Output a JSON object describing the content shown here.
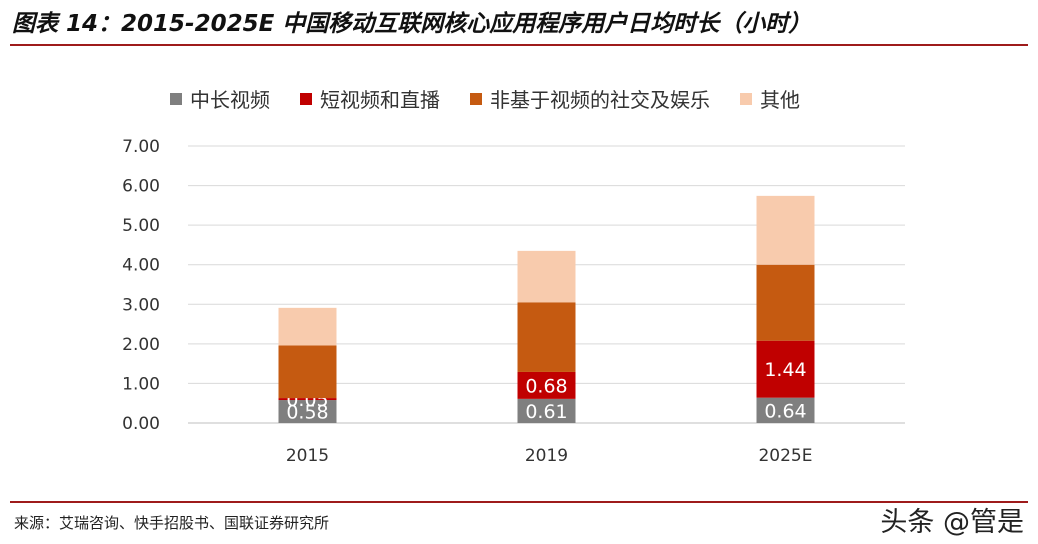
{
  "title": "图表 14：2015-2025E 中国移动互联网核心应用程序用户日均时长（小时）",
  "source": "来源：艾瑞咨询、快手招股书、国联证券研究所",
  "watermark": "头条 @管是",
  "colors": {
    "medium_long_video": "#7f7f7f",
    "short_video_live": "#c00000",
    "social_entertainment": "#c55a11",
    "other": "#f8cbad",
    "rule": "#9e1b1b"
  },
  "chart_data": {
    "type": "bar",
    "stacked": true,
    "categories": [
      "2015",
      "2019",
      "2025E"
    ],
    "series": [
      {
        "name": "中长视频",
        "values": [
          0.58,
          0.61,
          0.64
        ],
        "labels": [
          "0.58",
          "0.61",
          "0.64"
        ]
      },
      {
        "name": "短视频和直播",
        "values": [
          0.05,
          0.68,
          1.44
        ],
        "labels": [
          "0.05",
          "0.68",
          "1.44"
        ]
      },
      {
        "name": "非基于视频的社交及娱乐",
        "values": [
          1.33,
          1.76,
          1.92
        ],
        "labels": []
      },
      {
        "name": "其他",
        "values": [
          0.95,
          1.3,
          1.74
        ],
        "labels": []
      }
    ],
    "ylim": [
      0,
      7
    ],
    "yticks": [
      "0.00",
      "1.00",
      "2.00",
      "3.00",
      "4.00",
      "5.00",
      "6.00",
      "7.00"
    ],
    "grid": true,
    "legend": "top"
  }
}
